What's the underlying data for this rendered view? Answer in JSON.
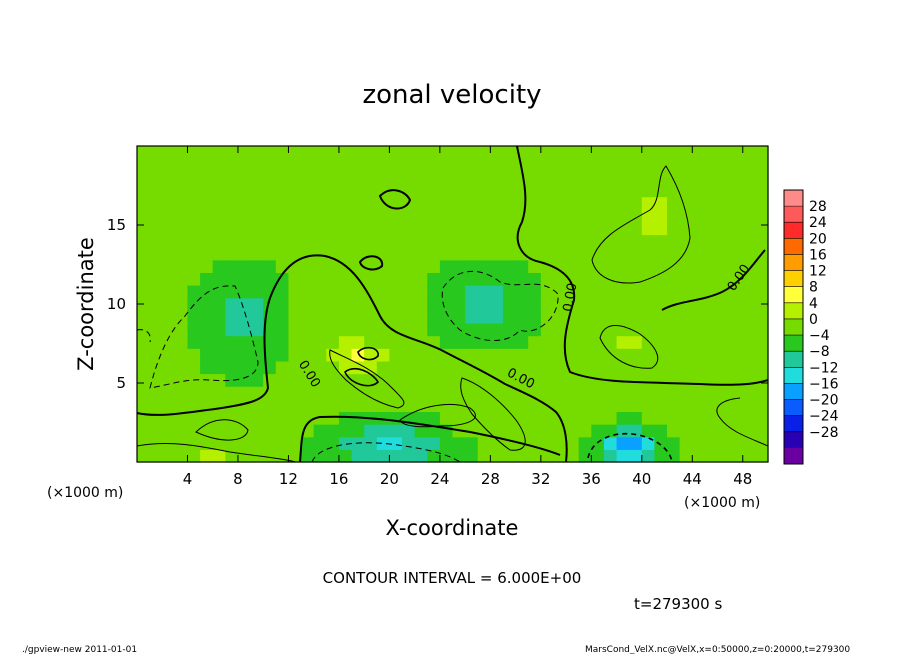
{
  "chart_data": {
    "type": "heatmap",
    "title": "zonal velocity",
    "xlabel": "X-coordinate",
    "ylabel": "Z-coordinate",
    "x_unit_left": "(×1000 m)",
    "x_unit_right": "(×1000 m)",
    "xlim": [
      0,
      50
    ],
    "ylim": [
      0,
      20
    ],
    "x_ticks": [
      4,
      8,
      12,
      16,
      20,
      24,
      28,
      32,
      36,
      40,
      44,
      48
    ],
    "y_ticks": [
      5,
      10,
      15
    ],
    "colorbar": {
      "labels": [
        "28",
        "24",
        "20",
        "16",
        "12",
        "8",
        "4",
        "0",
        "−4",
        "−8",
        "−12",
        "−16",
        "−20",
        "−24",
        "−28"
      ],
      "colors": [
        "#ff8a8a",
        "#ff5a5a",
        "#ff2a2a",
        "#ff6a00",
        "#ff9c00",
        "#ffd000",
        "#ffff3a",
        "#b4f000",
        "#76dc00",
        "#28c81e",
        "#20c89a",
        "#20dcdc",
        "#0aa0ff",
        "#0a5cff",
        "#0a20e6",
        "#2a00b4",
        "#6a00a0"
      ]
    },
    "contour_interval_text": "CONTOUR INTERVAL = 6.000E+00",
    "contour_label": "0.00",
    "time_text": "t=279300 s",
    "footer_left": "./gpview-new   2011-01-01",
    "footer_right": "MarsCond_VelX.nc@VelX,x=0:50000,z=0:20000,t=279300",
    "features": [
      {
        "x": 15.5,
        "z": 8,
        "sx": 3,
        "sz": 3,
        "v": 3
      },
      {
        "x": 18,
        "z": 6.5,
        "sx": 2,
        "sz": 1,
        "v": 7
      },
      {
        "x": 8.5,
        "z": 9,
        "sx": 3,
        "sz": 2.5,
        "v": -6
      },
      {
        "x": 27.5,
        "z": 10,
        "sx": 3,
        "sz": 2,
        "v": -6
      },
      {
        "x": 20,
        "z": 1,
        "sx": 4,
        "sz": 1.3,
        "v": -10
      },
      {
        "x": 39,
        "z": 1,
        "sx": 2,
        "sz": 1,
        "v": -17
      },
      {
        "x": 41,
        "z": 15.5,
        "sx": 3,
        "sz": 3,
        "v": 4
      },
      {
        "x": 39,
        "z": 7.5,
        "sx": 1.6,
        "sz": 1.5,
        "v": 4
      },
      {
        "x": 27.5,
        "z": 3,
        "sx": 2,
        "sz": 1,
        "v": 3
      },
      {
        "x": 8,
        "z": 2.5,
        "sx": 3,
        "sz": 1,
        "v": 3
      },
      {
        "x": 6,
        "z": 0.4,
        "sx": 1.5,
        "sz": 0.5,
        "v": 8
      }
    ]
  }
}
